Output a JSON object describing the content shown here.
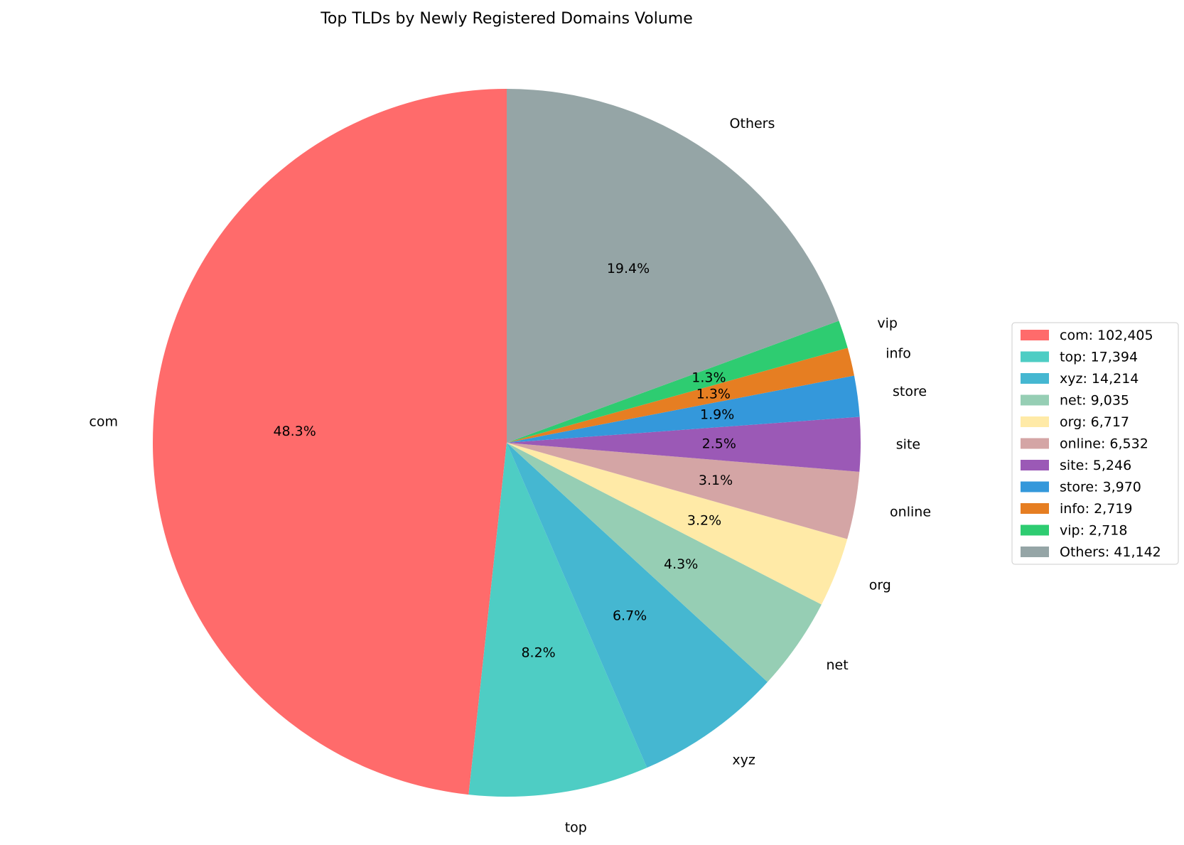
{
  "chart_data": {
    "type": "pie",
    "title": "Top TLDs by Newly Registered Domains Volume",
    "start_angle_deg": 90,
    "direction": "counterclockwise",
    "legend_placement": "right",
    "slices": [
      {
        "label": "com",
        "value": 102405,
        "percent_label": "48.3%",
        "legend": "com: 102,405",
        "color": "#ff6b6b"
      },
      {
        "label": "top",
        "value": 17394,
        "percent_label": "8.2%",
        "legend": "top: 17,394",
        "color": "#4ecdc4"
      },
      {
        "label": "xyz",
        "value": 14214,
        "percent_label": "6.7%",
        "legend": "xyz: 14,214",
        "color": "#45b7d1"
      },
      {
        "label": "net",
        "value": 9035,
        "percent_label": "4.3%",
        "legend": "net: 9,035",
        "color": "#96ceb4"
      },
      {
        "label": "org",
        "value": 6717,
        "percent_label": "3.2%",
        "legend": "org: 6,717",
        "color": "#ffeaa7"
      },
      {
        "label": "online",
        "value": 6532,
        "percent_label": "3.1%",
        "legend": "online: 6,532",
        "color": "#d4a5a5"
      },
      {
        "label": "site",
        "value": 5246,
        "percent_label": "2.5%",
        "legend": "site: 5,246",
        "color": "#9b59b6"
      },
      {
        "label": "store",
        "value": 3970,
        "percent_label": "1.9%",
        "legend": "store: 3,970",
        "color": "#3498db"
      },
      {
        "label": "info",
        "value": 2719,
        "percent_label": "1.3%",
        "legend": "info: 2,719",
        "color": "#e67e22"
      },
      {
        "label": "vip",
        "value": 2718,
        "percent_label": "1.3%",
        "legend": "vip: 2,718",
        "color": "#2ecc71"
      },
      {
        "label": "Others",
        "value": 41142,
        "percent_label": "19.4%",
        "legend": "Others: 41,142",
        "color": "#95a5a6"
      }
    ]
  }
}
